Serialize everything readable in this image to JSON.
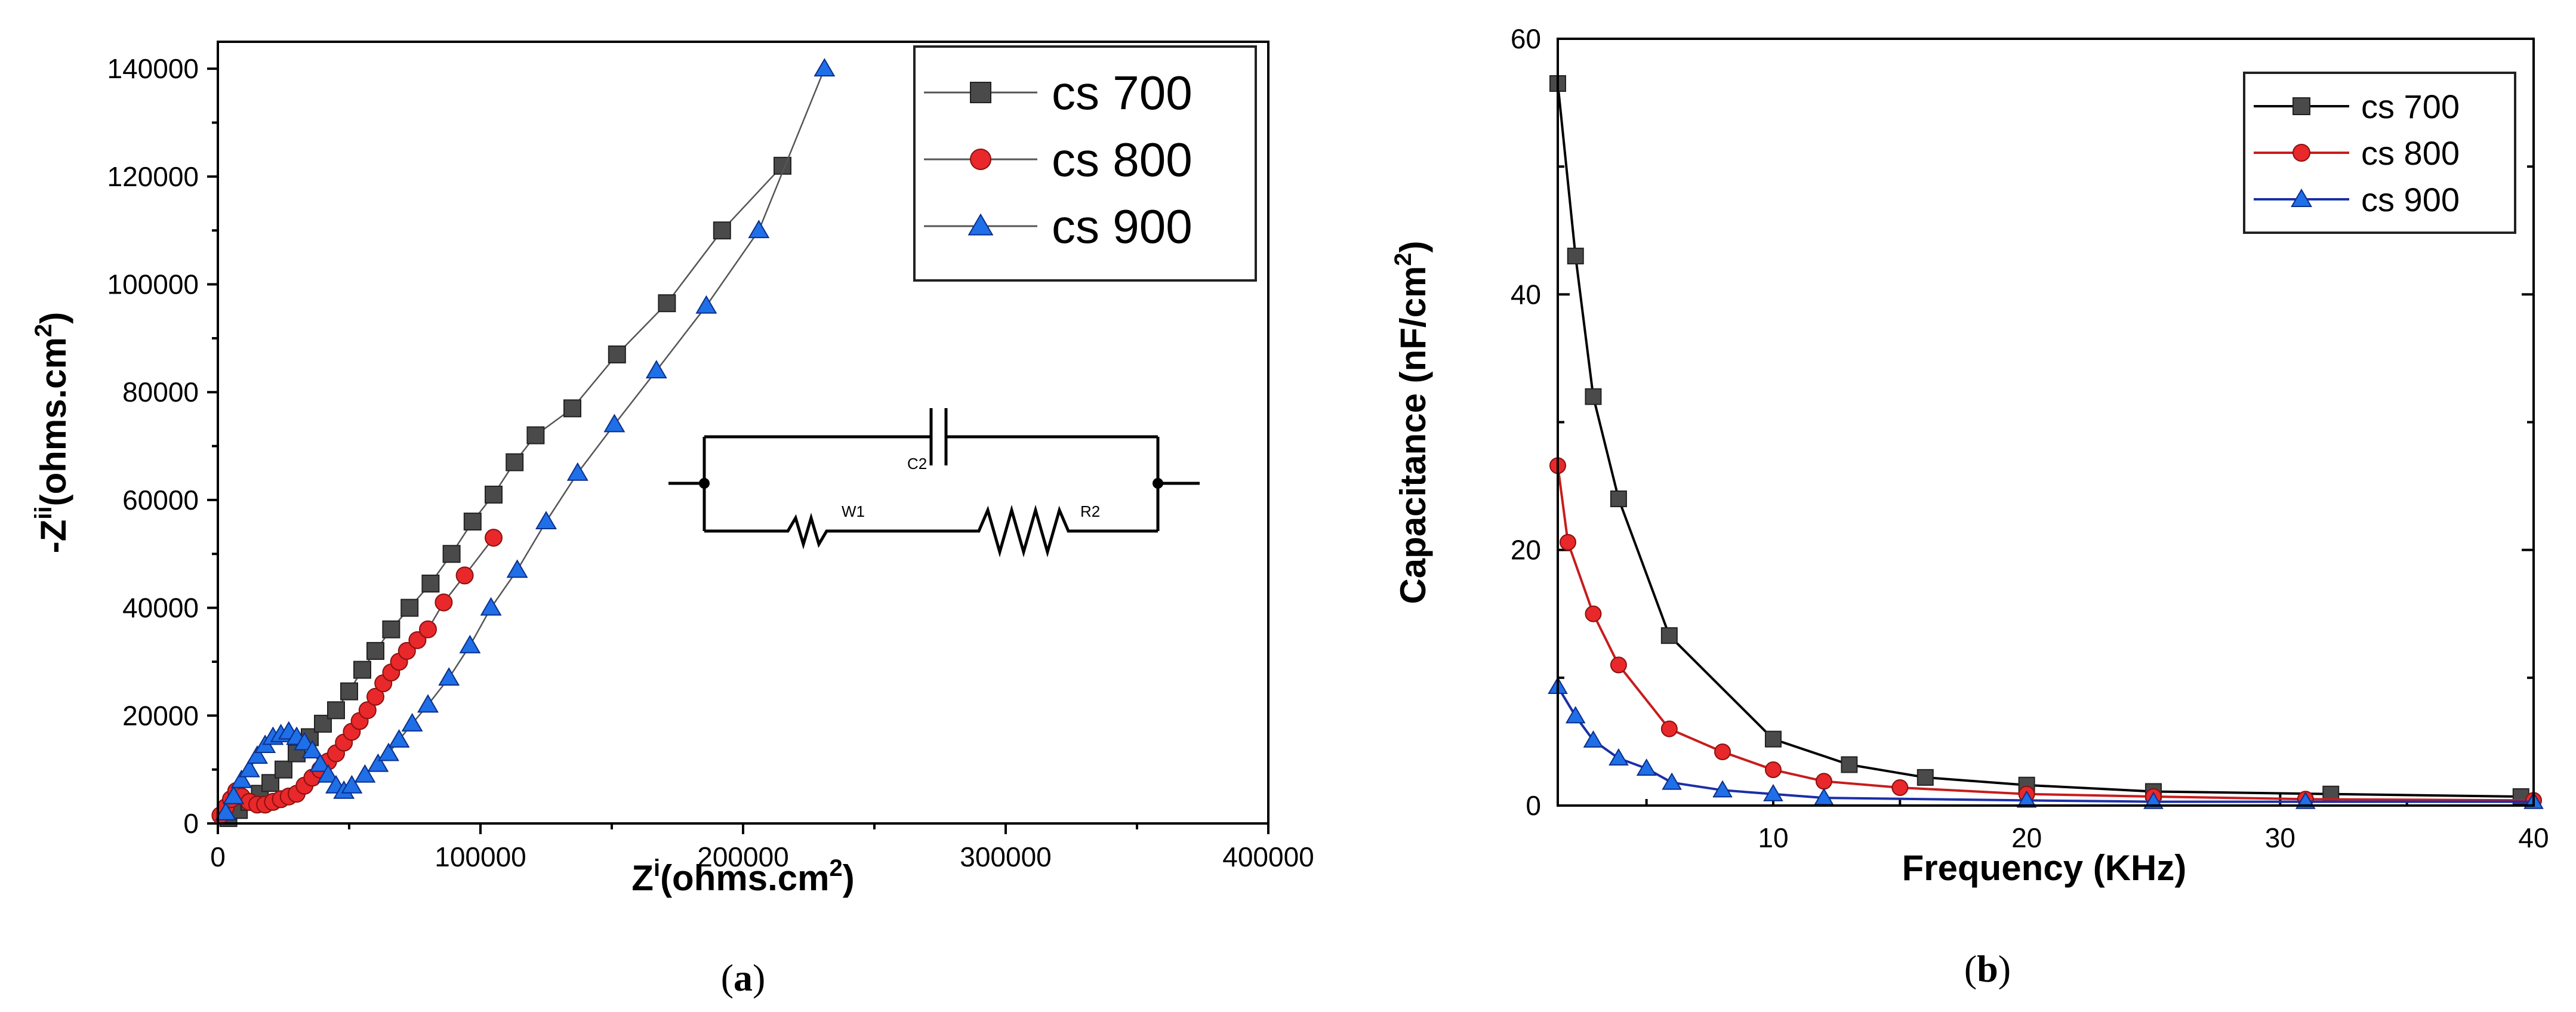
{
  "chart_data": [
    {
      "type": "scatter",
      "panel": "(a)",
      "panel_letter": "a",
      "xlabel_main": "Z",
      "xlabel_sup": "i",
      "xlabel_rest": "(ohms.cm",
      "xlabel_sup2": "2",
      "xlabel_close": ")",
      "ylabel_main": "-Z",
      "ylabel_sup": "ii",
      "ylabel_rest": "(ohms.cm",
      "ylabel_sup2": "2",
      "ylabel_close": ")",
      "xlim": [
        0,
        400000
      ],
      "ylim": [
        0,
        145000
      ],
      "xticks": [
        0,
        100000,
        200000,
        300000,
        400000
      ],
      "xtick_labels": [
        "0",
        "100000",
        "200000",
        "300000",
        "400000"
      ],
      "yticks": [
        0,
        20000,
        40000,
        60000,
        80000,
        100000,
        120000,
        140000
      ],
      "ytick_labels": [
        "0",
        "20000",
        "40000",
        "60000",
        "80000",
        "100000",
        "120000",
        "140000"
      ],
      "legend_position": "top-right",
      "circuit_labels": {
        "c2": "C2",
        "w1": "W1",
        "r2": "R2"
      },
      "series": [
        {
          "name": "cs 700",
          "marker": "square",
          "color": "#4a4a4a",
          "x": [
            4000,
            8000,
            12000,
            16000,
            20000,
            25000,
            30000,
            35000,
            40000,
            45000,
            50000,
            55000,
            60000,
            66000,
            73000,
            81000,
            89000,
            97000,
            105000,
            113000,
            121000,
            135000,
            152000,
            171000,
            192000,
            215000
          ],
          "y": [
            1000,
            2500,
            4000,
            5500,
            7500,
            10000,
            13000,
            16000,
            18500,
            21000,
            24500,
            28500,
            32000,
            36000,
            40000,
            44500,
            50000,
            56000,
            61000,
            67000,
            72000,
            77000,
            87000,
            96500,
            110000,
            122000
          ]
        },
        {
          "name": "cs 800",
          "marker": "circle",
          "color": "#e8282a",
          "x": [
            1000,
            3000,
            5000,
            7000,
            9000,
            12000,
            15000,
            18000,
            21000,
            24000,
            27000,
            30000,
            33000,
            36000,
            39000,
            42000,
            45000,
            48000,
            51000,
            54000,
            57000,
            60000,
            63000,
            66000,
            69000,
            72000,
            76000,
            80000,
            86000,
            94000,
            105000
          ],
          "y": [
            1500,
            3000,
            4500,
            6000,
            5000,
            4000,
            3500,
            3500,
            4000,
            4500,
            5000,
            5500,
            7000,
            8500,
            10000,
            11500,
            13000,
            15000,
            17000,
            19000,
            21000,
            23500,
            26000,
            28000,
            30000,
            32000,
            34000,
            36000,
            41000,
            46000,
            53000
          ]
        },
        {
          "name": "cs 900",
          "marker": "triangle",
          "color": "#1f6fe8",
          "x": [
            3000,
            6000,
            9000,
            12000,
            15000,
            18000,
            21000,
            24000,
            27000,
            30000,
            33000,
            36000,
            39000,
            42000,
            45000,
            48000,
            51000,
            56000,
            61000,
            65000,
            69000,
            74000,
            80000,
            88000,
            96000,
            104000,
            114000,
            125000,
            137000,
            151000,
            167000,
            186000,
            206000,
            231000
          ],
          "y": [
            2000,
            5000,
            8000,
            10000,
            12500,
            14500,
            16000,
            16500,
            17000,
            16000,
            15000,
            13500,
            11000,
            9000,
            7000,
            6000,
            7000,
            9000,
            11000,
            13000,
            15500,
            18500,
            22000,
            27000,
            33000,
            40000,
            47000,
            56000,
            65000,
            74000,
            84000,
            96000,
            110000,
            140000
          ]
        }
      ]
    },
    {
      "type": "line",
      "panel": "(b)",
      "panel_letter": "b",
      "xlabel": "Frequency (KHz)",
      "ylabel_main": "Capacitance (nF/cm",
      "ylabel_sup": "2",
      "ylabel_close": ")",
      "xlim": [
        1.5,
        40
      ],
      "ylim": [
        0,
        60
      ],
      "xticks": [
        10,
        20,
        30,
        40
      ],
      "xtick_labels": [
        "10",
        "20",
        "30",
        "40"
      ],
      "yticks": [
        0,
        20,
        40,
        60
      ],
      "ytick_labels": [
        "0",
        "20",
        "40",
        "60"
      ],
      "legend_position": "top-right",
      "series": [
        {
          "name": "cs 700",
          "marker": "square",
          "color": "#4a4a4a",
          "line_color": "#000000",
          "x": [
            1.5,
            2.2,
            2.9,
            3.9,
            5.9,
            10,
            13,
            16,
            20,
            25,
            32,
            39.5
          ],
          "y": [
            56.5,
            43,
            32,
            24,
            13.3,
            5.2,
            3.2,
            2.2,
            1.6,
            1.1,
            0.9,
            0.7
          ]
        },
        {
          "name": "cs 800",
          "marker": "circle",
          "color": "#e8282a",
          "line_color": "#c81c1c",
          "x": [
            1.5,
            1.9,
            2.9,
            3.9,
            5.9,
            8,
            10,
            12,
            15,
            20,
            25,
            31,
            40
          ],
          "y": [
            26.6,
            20.6,
            15,
            11,
            6,
            4.2,
            2.8,
            1.9,
            1.4,
            0.9,
            0.7,
            0.5,
            0.4
          ]
        },
        {
          "name": "cs 900",
          "marker": "triangle",
          "color": "#1f6fe8",
          "line_color": "#1a2fa8",
          "x": [
            1.5,
            2.2,
            2.9,
            3.9,
            5,
            6,
            8,
            10,
            12,
            20,
            25,
            31,
            40
          ],
          "y": [
            9.3,
            7,
            5.1,
            3.7,
            2.9,
            1.8,
            1.2,
            0.9,
            0.6,
            0.4,
            0.3,
            0.3,
            0.3
          ]
        }
      ]
    }
  ]
}
